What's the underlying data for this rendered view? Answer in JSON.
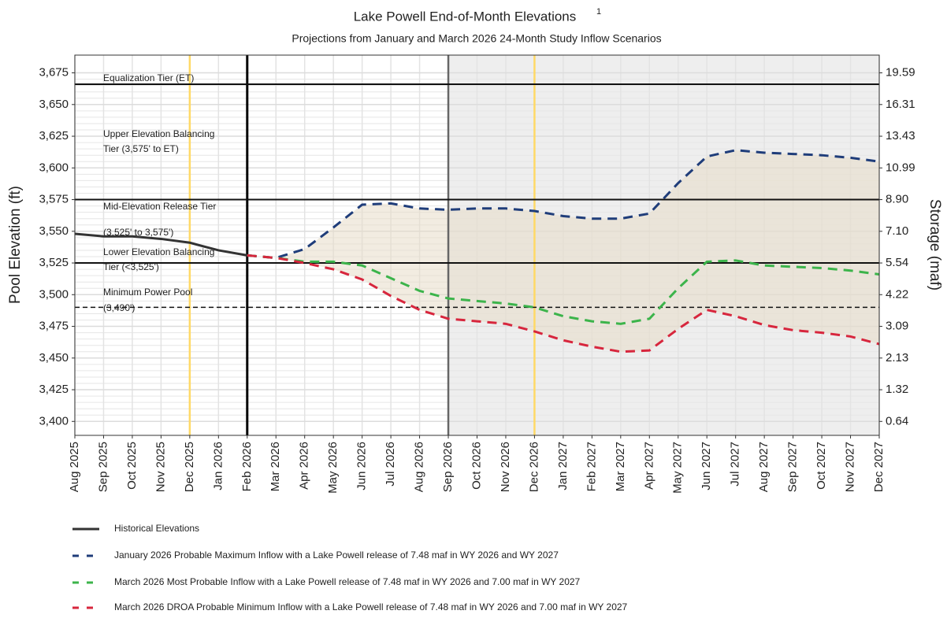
{
  "chart_data": {
    "type": "line",
    "title": "Lake Powell End-of-Month Elevations",
    "title_footnote": "1",
    "subtitle": "Projections from January and March 2026 24-Month Study Inflow Scenarios",
    "y_label": "Pool Elevation (ft)",
    "y2_label": "Storage (maf)",
    "categories": [
      "Aug 2025",
      "Sep 2025",
      "Oct 2025",
      "Nov 2025",
      "Dec 2025",
      "Jan 2026",
      "Feb 2026",
      "Mar 2026",
      "Apr 2026",
      "May 2026",
      "Jun 2026",
      "Jul 2026",
      "Aug 2026",
      "Sep 2026",
      "Oct 2026",
      "Nov 2026",
      "Dec 2026",
      "Jan 2027",
      "Feb 2027",
      "Mar 2027",
      "Apr 2027",
      "May 2027",
      "Jun 2027",
      "Jul 2027",
      "Aug 2027",
      "Sep 2027",
      "Oct 2027",
      "Nov 2027",
      "Dec 2027"
    ],
    "series": [
      {
        "name": "Historical Elevations",
        "color": "#333333",
        "dashed": false,
        "values": [
          3548,
          3546,
          3546,
          3544,
          3541,
          3535,
          3531,
          null,
          null,
          null,
          null,
          null,
          null,
          null,
          null,
          null,
          null,
          null,
          null,
          null,
          null,
          null,
          null,
          null,
          null,
          null,
          null,
          null,
          null
        ]
      },
      {
        "name": "January 2026 Probable Maximum Inflow with a Lake Powell release of 7.48 maf in WY 2026 and WY 2027",
        "color": "#1f3d7a",
        "dashed": true,
        "values": [
          null,
          null,
          null,
          null,
          null,
          null,
          3531,
          3529,
          3536,
          3553,
          3571,
          3572,
          3568,
          3567,
          3568,
          3568,
          3566,
          3562,
          3560,
          3560,
          3564,
          3588,
          3609,
          3614,
          3612,
          3611,
          3610,
          3608,
          3605
        ]
      },
      {
        "name": "March 2026 Most Probable Inflow with a Lake Powell release of 7.48 maf in WY 2026 and 7.00 maf in WY 2027",
        "color": "#3cb44b",
        "dashed": true,
        "values": [
          null,
          null,
          null,
          null,
          null,
          null,
          3531,
          3529,
          3526,
          3526,
          3523,
          3513,
          3503,
          3497,
          3495,
          3493,
          3490,
          3483,
          3479,
          3477,
          3481,
          3505,
          3526,
          3527,
          3523,
          3522,
          3521,
          3519,
          3516
        ]
      },
      {
        "name": "March 2026 DROA Probable Minimum Inflow with a Lake Powell release of 7.48 maf in WY 2026 and 7.00 maf in WY 2027",
        "color": "#d7263d",
        "dashed": true,
        "values": [
          null,
          null,
          null,
          null,
          null,
          null,
          3531,
          3529,
          3525,
          3520,
          3512,
          3499,
          3488,
          3481,
          3479,
          3477,
          3471,
          3464,
          3459,
          3455,
          3456,
          3473,
          3488,
          3483,
          3476,
          3472,
          3470,
          3467,
          3461
        ]
      }
    ],
    "ylim": [
      3389,
      3689
    ],
    "yticks": [
      {
        "value": 3400,
        "label": "3,400"
      },
      {
        "value": 3425,
        "label": "3,425"
      },
      {
        "value": 3450,
        "label": "3,450"
      },
      {
        "value": 3475,
        "label": "3,475"
      },
      {
        "value": 3500,
        "label": "3,500"
      },
      {
        "value": 3525,
        "label": "3,525"
      },
      {
        "value": 3550,
        "label": "3,550"
      },
      {
        "value": 3575,
        "label": "3,575"
      },
      {
        "value": 3600,
        "label": "3,600"
      },
      {
        "value": 3625,
        "label": "3,625"
      },
      {
        "value": 3650,
        "label": "3,650"
      },
      {
        "value": 3675,
        "label": "3,675"
      }
    ],
    "y2ticks": [
      0.64,
      1.32,
      2.13,
      3.09,
      4.22,
      5.54,
      {
        "value": 7.1,
        "label": "7.10"
      },
      {
        "value": 8.9,
        "label": "8.90"
      },
      10.99,
      13.43,
      16.31,
      19.59
    ],
    "grid": true,
    "reference_lines": [
      {
        "value": 3666,
        "dashed": false
      },
      {
        "value": 3575,
        "dashed": false
      },
      {
        "value": 3525,
        "dashed": false
      },
      {
        "value": 3490,
        "dashed": true
      }
    ],
    "tier_labels": [
      "Equalization Tier (ET)",
      "Upper Elevation Balancing",
      "Tier (3,575' to ET)",
      "Mid-Elevation Release Tier",
      "(3,525' to 3,575')",
      "Lower Elevation Balancing",
      "Tier (<3,525')",
      "Minimum Power Pool",
      "(3,490')"
    ],
    "vertical_lines": [
      {
        "at": "Dec 2025",
        "color": "#ffd966"
      },
      {
        "at": "Dec 2026",
        "color": "#ffd966"
      },
      {
        "at": "Feb 2026",
        "color": "#000000"
      },
      {
        "at": "Sep 2026",
        "color": "#666666"
      }
    ],
    "shaded_from": "Sep 2026",
    "shade_color": "#eeeeee",
    "band_color": "#e8dcc8"
  }
}
